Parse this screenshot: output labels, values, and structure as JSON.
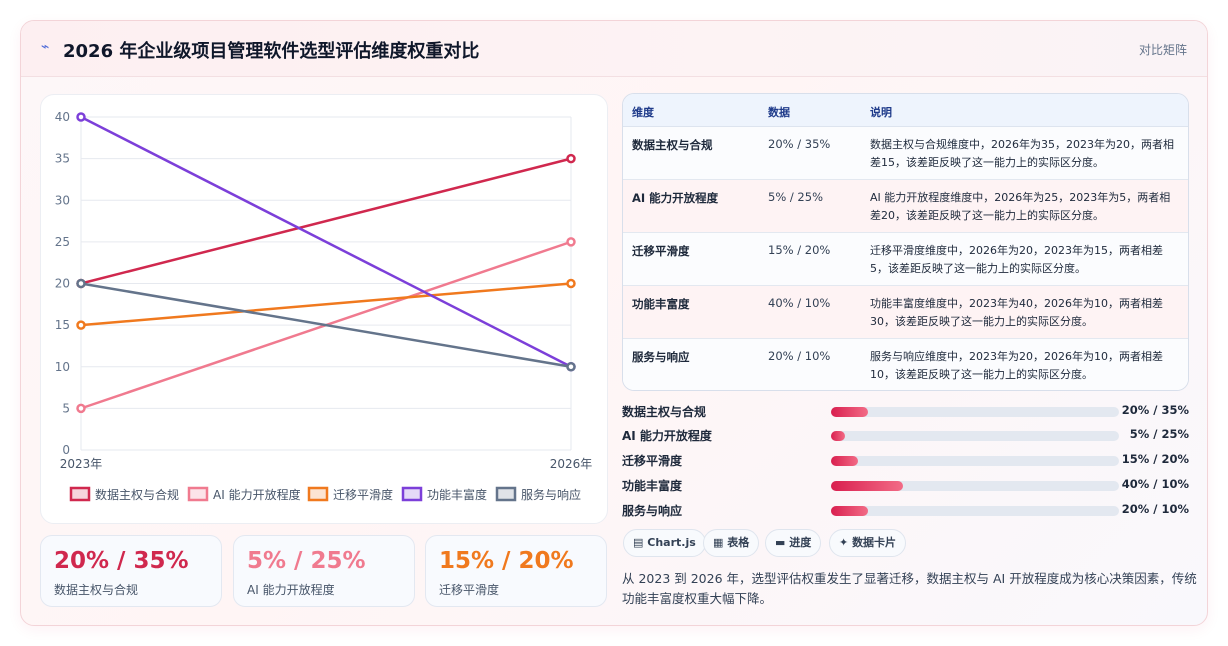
{
  "header": {
    "icon": "bolt-icon",
    "title": "2026 年企业级项目管理软件选型评估维度权重对比",
    "tag": "对比矩阵"
  },
  "colors": {
    "数据主权与合规": "#d0284e",
    "AI 能力开放程度": "#f07a8f",
    "迁移平滑度": "#f0791e",
    "功能丰富度": "#7c3fd9",
    "服务与响应": "#64748b"
  },
  "chart_data": {
    "type": "line",
    "x": [
      "2023年",
      "2026年"
    ],
    "ylim": [
      0,
      40
    ],
    "yticks": [
      0,
      5,
      10,
      15,
      20,
      25,
      30,
      35,
      40
    ],
    "grid": true,
    "legend": "bottom",
    "series": [
      {
        "name": "数据主权与合规",
        "values": [
          20,
          35
        ]
      },
      {
        "name": "AI 能力开放程度",
        "values": [
          5,
          25
        ]
      },
      {
        "name": "迁移平滑度",
        "values": [
          15,
          20
        ]
      },
      {
        "name": "功能丰富度",
        "values": [
          40,
          10
        ]
      },
      {
        "name": "服务与响应",
        "values": [
          20,
          10
        ]
      }
    ]
  },
  "kpis": [
    {
      "value": "20% / 35%",
      "label": "数据主权与合规",
      "color": "#d0284e"
    },
    {
      "value": "5% / 25%",
      "label": "AI 能力开放程度",
      "color": "#f07a8f"
    },
    {
      "value": "15% / 20%",
      "label": "迁移平滑度",
      "color": "#f0791e"
    }
  ],
  "table": {
    "headers": [
      "维度",
      "数据",
      "说明"
    ],
    "rows": [
      {
        "dim": "数据主权与合规",
        "data": "20% / 35%",
        "note": "数据主权与合规维度中，2026年为35，2023年为20，两者相差15，该差距反映了这一能力上的实际区分度。"
      },
      {
        "dim": "AI 能力开放程度",
        "data": "5% / 25%",
        "note": "AI 能力开放程度维度中，2026年为25，2023年为5，两者相差20，该差距反映了这一能力上的实际区分度。"
      },
      {
        "dim": "迁移平滑度",
        "data": "15% / 20%",
        "note": "迁移平滑度维度中，2026年为20，2023年为15，两者相差5，该差距反映了这一能力上的实际区分度。"
      },
      {
        "dim": "功能丰富度",
        "data": "40% / 10%",
        "note": "功能丰富度维度中，2023年为40，2026年为10，两者相差30，该差距反映了这一能力上的实际区分度。"
      },
      {
        "dim": "服务与响应",
        "data": "20% / 10%",
        "note": "服务与响应维度中，2023年为20，2026年为10，两者相差10，该差距反映了这一能力上的实际区分度。"
      }
    ]
  },
  "bars": [
    {
      "label": "数据主权与合规",
      "value": "20% / 35%",
      "fill": 0.13
    },
    {
      "label": "AI 能力开放程度",
      "value": "5% / 25%",
      "fill": 0.05
    },
    {
      "label": "迁移平滑度",
      "value": "15% / 20%",
      "fill": 0.095
    },
    {
      "label": "功能丰富度",
      "value": "40% / 10%",
      "fill": 0.25
    },
    {
      "label": "服务与响应",
      "value": "20% / 10%",
      "fill": 0.13
    }
  ],
  "chips": [
    {
      "icon": "chart-icon",
      "glyph": "▤",
      "label": "Chart.js"
    },
    {
      "icon": "table-icon",
      "glyph": "▦",
      "label": "表格"
    },
    {
      "icon": "progress-icon",
      "glyph": "▬",
      "label": "进度"
    },
    {
      "icon": "sparkle-icon",
      "glyph": "✦",
      "label": "数据卡片"
    }
  ],
  "summary": "从 2023 到 2026 年，选型评估权重发生了显著迁移，数据主权与 AI 开放程度成为核心决策因素，传统功能丰富度权重大幅下降。"
}
